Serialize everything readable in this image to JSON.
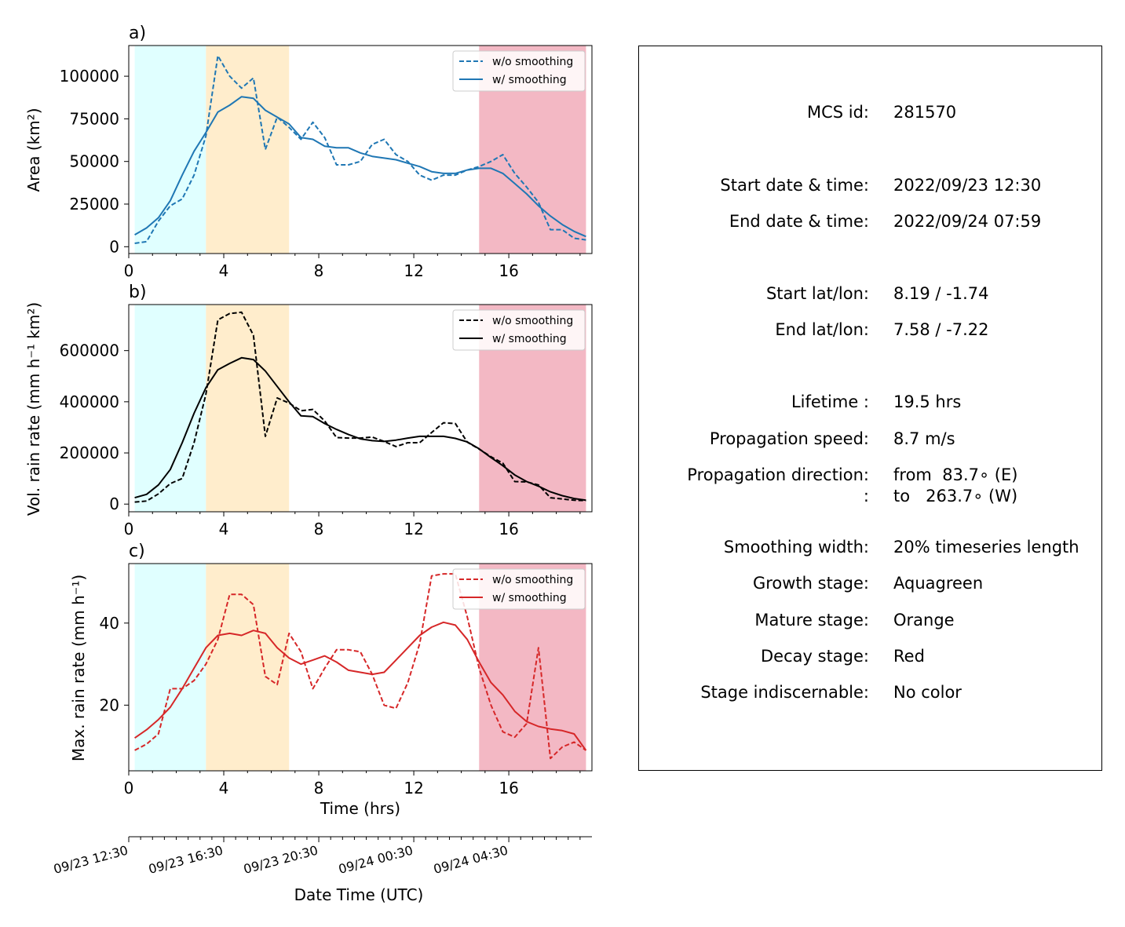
{
  "colors": {
    "growth_bg": "#e0ffff",
    "mature_bg": "#ffedcc",
    "decay_bg": "#f3b8c4",
    "area_line": "#1f77b4",
    "vol_line": "#000000",
    "max_line": "#d62728"
  },
  "legend": {
    "raw": "w/o smoothing",
    "smooth": "w/ smoothing"
  },
  "panels": {
    "a": {
      "tag": "a)",
      "ylabel": "Area  (km²)"
    },
    "b": {
      "tag": "b)",
      "ylabel": "Vol. rain rate (mm h⁻¹ km²)"
    },
    "c": {
      "tag": "c)",
      "ylabel": "Max. rain rate  (mm h⁻¹)"
    }
  },
  "xlabel": "Time (hrs)",
  "datetime_axis": {
    "label": "Date Time (UTC)",
    "ticks": [
      "09/23 12:30",
      "09/23 16:30",
      "09/23 20:30",
      "09/24 00:30",
      "09/24 04:30"
    ]
  },
  "chart_data": [
    {
      "type": "line",
      "panel": "a",
      "title": "a)",
      "xlabel": "",
      "ylabel": "Area  (km²)",
      "xlim": [
        0,
        19.5
      ],
      "ylim": [
        -4000,
        118000
      ],
      "xticks": [
        0,
        4,
        8,
        12,
        16
      ],
      "yticks": [
        0,
        25000,
        50000,
        75000,
        100000
      ],
      "grid": false,
      "legend_position": "top-right",
      "stages": {
        "growth": [
          0.25,
          3.25
        ],
        "mature": [
          3.25,
          6.75
        ],
        "decay": [
          14.75,
          19.25
        ]
      },
      "x": [
        0.25,
        0.75,
        1.25,
        1.75,
        2.25,
        2.75,
        3.25,
        3.75,
        4.25,
        4.75,
        5.25,
        5.75,
        6.25,
        6.75,
        7.25,
        7.75,
        8.25,
        8.75,
        9.25,
        9.75,
        10.25,
        10.75,
        11.25,
        11.75,
        12.25,
        12.75,
        13.25,
        13.75,
        14.25,
        14.75,
        15.25,
        15.75,
        16.25,
        16.75,
        17.25,
        17.75,
        18.25,
        18.75,
        19.25
      ],
      "series": [
        {
          "name": "w/o smoothing",
          "style": "dashed",
          "values": [
            2000,
            3000,
            15000,
            24000,
            28000,
            42000,
            65000,
            112000,
            100000,
            93000,
            99000,
            57000,
            76000,
            70000,
            63000,
            73000,
            64000,
            48000,
            48000,
            50000,
            60000,
            63000,
            54000,
            50000,
            42000,
            39000,
            42000,
            42000,
            45000,
            47000,
            50000,
            54000,
            43000,
            35000,
            26000,
            10000,
            10000,
            5000,
            4000
          ]
        },
        {
          "name": "w/ smoothing",
          "style": "solid",
          "values": [
            7000,
            11000,
            17000,
            27000,
            42000,
            56000,
            67000,
            79000,
            83000,
            88000,
            87000,
            80000,
            76000,
            72000,
            64000,
            63000,
            59000,
            58000,
            58000,
            55000,
            53000,
            52000,
            51000,
            49000,
            47000,
            44000,
            43000,
            43000,
            45000,
            46000,
            46000,
            43000,
            37000,
            31000,
            24000,
            18000,
            13000,
            9000,
            6000
          ]
        }
      ]
    },
    {
      "type": "line",
      "panel": "b",
      "title": "b)",
      "xlabel": "",
      "ylabel": "Vol. rain rate (mm h⁻¹ km²)",
      "xlim": [
        0,
        19.5
      ],
      "ylim": [
        -30000,
        780000
      ],
      "xticks": [
        0,
        4,
        8,
        12,
        16
      ],
      "yticks": [
        0,
        200000,
        400000,
        600000
      ],
      "grid": false,
      "legend_position": "top-right",
      "stages": {
        "growth": [
          0.25,
          3.25
        ],
        "mature": [
          3.25,
          6.75
        ],
        "decay": [
          14.75,
          19.25
        ]
      },
      "x": [
        0.25,
        0.75,
        1.25,
        1.75,
        2.25,
        2.75,
        3.25,
        3.75,
        4.25,
        4.75,
        5.25,
        5.75,
        6.25,
        6.75,
        7.25,
        7.75,
        8.25,
        8.75,
        9.25,
        9.75,
        10.25,
        10.75,
        11.25,
        11.75,
        12.25,
        12.75,
        13.25,
        13.75,
        14.25,
        14.75,
        15.25,
        15.75,
        16.25,
        16.75,
        17.25,
        17.75,
        18.25,
        18.75,
        19.25
      ],
      "series": [
        {
          "name": "w/o smoothing",
          "style": "dashed",
          "values": [
            8000,
            12000,
            40000,
            80000,
            100000,
            240000,
            430000,
            720000,
            745000,
            750000,
            660000,
            265000,
            415000,
            395000,
            365000,
            370000,
            325000,
            260000,
            258000,
            258000,
            262000,
            245000,
            225000,
            240000,
            240000,
            280000,
            318000,
            315000,
            242000,
            215000,
            185000,
            160000,
            88000,
            87000,
            75000,
            25000,
            20000,
            15000,
            14000
          ]
        },
        {
          "name": "w/ smoothing",
          "style": "solid",
          "values": [
            25000,
            38000,
            75000,
            135000,
            240000,
            355000,
            455000,
            525000,
            550000,
            572000,
            565000,
            520000,
            460000,
            400000,
            345000,
            342000,
            315000,
            292000,
            272000,
            255000,
            248000,
            245000,
            250000,
            258000,
            265000,
            265000,
            265000,
            257000,
            243000,
            216000,
            182000,
            150000,
            114000,
            88000,
            70000,
            48000,
            33000,
            22000,
            15000
          ]
        }
      ]
    },
    {
      "type": "line",
      "panel": "c",
      "title": "c)",
      "xlabel": "Time (hrs)",
      "ylabel": "Max. rain rate  (mm h⁻¹)",
      "xlim": [
        0,
        19.5
      ],
      "ylim": [
        4,
        54.5
      ],
      "xticks": [
        0,
        4,
        8,
        12,
        16
      ],
      "yticks": [
        20,
        40
      ],
      "grid": false,
      "legend_position": "top-right",
      "stages": {
        "growth": [
          0.25,
          3.25
        ],
        "mature": [
          3.25,
          6.75
        ],
        "decay": [
          14.75,
          19.25
        ]
      },
      "x": [
        0.25,
        0.75,
        1.25,
        1.75,
        2.25,
        2.75,
        3.25,
        3.75,
        4.25,
        4.75,
        5.25,
        5.75,
        6.25,
        6.75,
        7.25,
        7.75,
        8.25,
        8.75,
        9.25,
        9.75,
        10.25,
        10.75,
        11.25,
        11.75,
        12.25,
        12.75,
        13.25,
        13.75,
        14.25,
        14.75,
        15.25,
        15.75,
        16.25,
        16.75,
        17.25,
        17.75,
        18.25,
        18.75,
        19.25
      ],
      "series": [
        {
          "name": "w/o smoothing",
          "style": "dashed",
          "values": [
            9,
            10.5,
            13,
            24,
            24,
            26,
            30,
            36,
            47,
            47,
            44.5,
            27,
            25,
            37.5,
            33,
            24,
            29,
            33.5,
            33.5,
            33,
            27.5,
            20,
            19.2,
            25.5,
            35,
            51.5,
            52,
            52,
            41.5,
            29,
            20,
            13.5,
            12.2,
            15.5,
            34,
            7,
            9.8,
            11,
            9
          ]
        },
        {
          "name": "w/ smoothing",
          "style": "solid",
          "values": [
            12,
            14,
            16.5,
            19.5,
            24,
            29,
            34,
            37,
            37.5,
            37,
            38.2,
            37.5,
            34,
            31.5,
            30,
            31,
            32,
            30.5,
            28.5,
            28,
            27.5,
            28,
            31,
            34,
            37,
            39,
            40.2,
            39.5,
            36,
            30.5,
            25.5,
            22.5,
            18.5,
            16,
            14.8,
            14.2,
            13.8,
            13,
            9
          ]
        }
      ]
    }
  ],
  "info": [
    {
      "label": "MCS id:",
      "value": "281570"
    },
    {
      "label": "Start date & time:",
      "value": "2022/09/23 12:30"
    },
    {
      "label": "End date & time:",
      "value": "2022/09/24 07:59"
    },
    {
      "label": "Start lat/lon:",
      "value": "8.19 / -1.74"
    },
    {
      "label": "End lat/lon:",
      "value": "7.58 / -7.22"
    },
    {
      "label": "Lifetime :",
      "value": "19.5 hrs"
    },
    {
      "label": "Propagation speed:",
      "value": "8.7 m/s"
    },
    {
      "label": "Propagation direction:",
      "value": "from  83.7∘ (E)"
    },
    {
      "label": ":",
      "value": "to   263.7∘ (W)"
    },
    {
      "label": "Smoothing width:",
      "value": "20% timeseries length"
    },
    {
      "label": "Growth stage:",
      "value": "Aquagreen"
    },
    {
      "label": "Mature stage:",
      "value": "Orange"
    },
    {
      "label": "Decay stage:",
      "value": "Red"
    },
    {
      "label": "Stage indiscernable:",
      "value": "No color"
    }
  ]
}
